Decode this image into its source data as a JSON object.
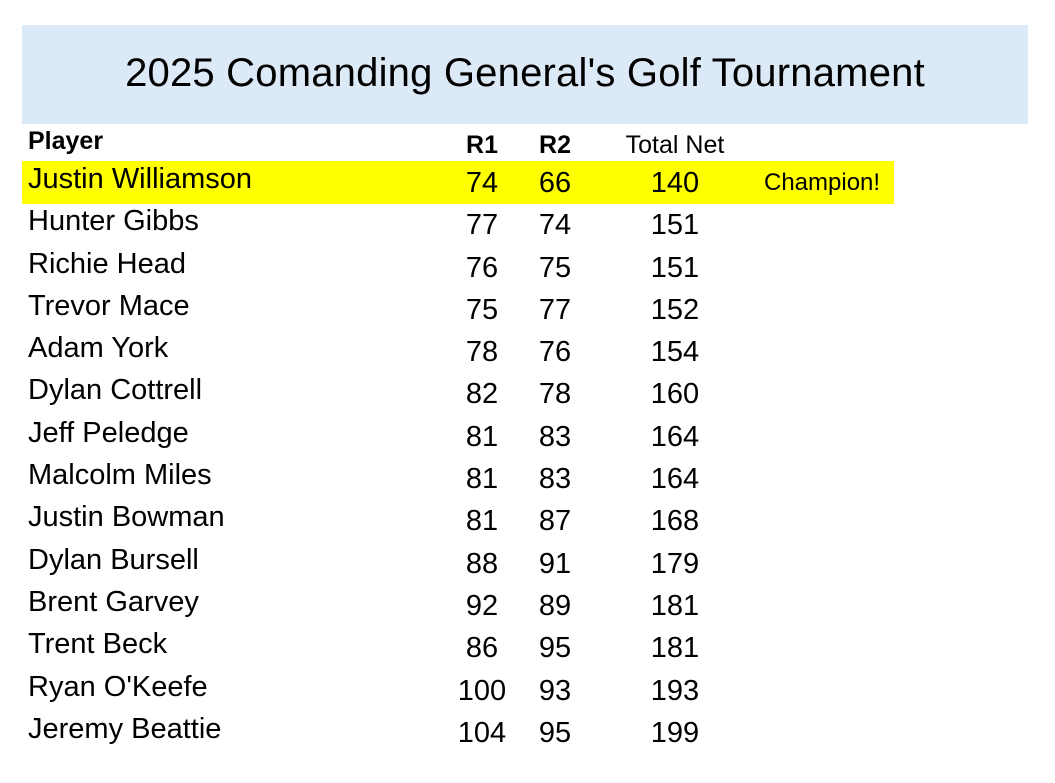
{
  "title": "2025 Comanding General's Golf Tournament",
  "columns": {
    "player": "Player",
    "r1": "R1",
    "r2": "R2",
    "total": "Total Net"
  },
  "rows": [
    {
      "name": "Justin Williamson",
      "r1": "74",
      "r2": "66",
      "total": "140",
      "note": "Champion!"
    },
    {
      "name": "Hunter Gibbs",
      "r1": "77",
      "r2": "74",
      "total": "151",
      "note": ""
    },
    {
      "name": "Richie Head",
      "r1": "76",
      "r2": "75",
      "total": "151",
      "note": ""
    },
    {
      "name": "Trevor Mace",
      "r1": "75",
      "r2": "77",
      "total": "152",
      "note": ""
    },
    {
      "name": "Adam York",
      "r1": "78",
      "r2": "76",
      "total": "154",
      "note": ""
    },
    {
      "name": "Dylan Cottrell",
      "r1": "82",
      "r2": "78",
      "total": "160",
      "note": ""
    },
    {
      "name": "Jeff Peledge",
      "r1": "81",
      "r2": "83",
      "total": "164",
      "note": ""
    },
    {
      "name": "Malcolm Miles",
      "r1": "81",
      "r2": "83",
      "total": "164",
      "note": ""
    },
    {
      "name": "Justin Bowman",
      "r1": "81",
      "r2": "87",
      "total": "168",
      "note": ""
    },
    {
      "name": "Dylan Bursell",
      "r1": "88",
      "r2": "91",
      "total": "179",
      "note": ""
    },
    {
      "name": "Brent Garvey",
      "r1": "92",
      "r2": "89",
      "total": "181",
      "note": ""
    },
    {
      "name": "Trent Beck",
      "r1": "86",
      "r2": "95",
      "total": "181",
      "note": ""
    },
    {
      "name": "Ryan O'Keefe",
      "r1": "100",
      "r2": "93",
      "total": "193",
      "note": ""
    },
    {
      "name": "Jeremy Beattie",
      "r1": "104",
      "r2": "95",
      "total": "199",
      "note": ""
    }
  ],
  "highlight_color": "#ffff00",
  "banner_color": "#dce9f7"
}
